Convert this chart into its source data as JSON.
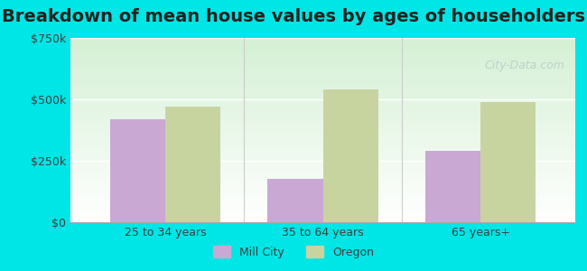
{
  "title": "Breakdown of mean house values by ages of householders",
  "categories": [
    "25 to 34 years",
    "35 to 64 years",
    "65 years+"
  ],
  "mill_city_values": [
    420000,
    175000,
    290000
  ],
  "oregon_values": [
    470000,
    540000,
    490000
  ],
  "mill_city_color": "#c9a8d4",
  "oregon_color": "#c8d4a0",
  "ylim": [
    0,
    750000
  ],
  "yticks": [
    0,
    250000,
    500000,
    750000
  ],
  "ytick_labels": [
    "$0",
    "$250k",
    "$500k",
    "$750k"
  ],
  "background_color": "#00e5e5",
  "plot_bg_top": "#e8f5e9",
  "plot_bg_bottom": "#f0fff0",
  "bar_width": 0.35,
  "legend_labels": [
    "Mill City",
    "Oregon"
  ],
  "watermark": "City-Data.com",
  "title_fontsize": 14
}
